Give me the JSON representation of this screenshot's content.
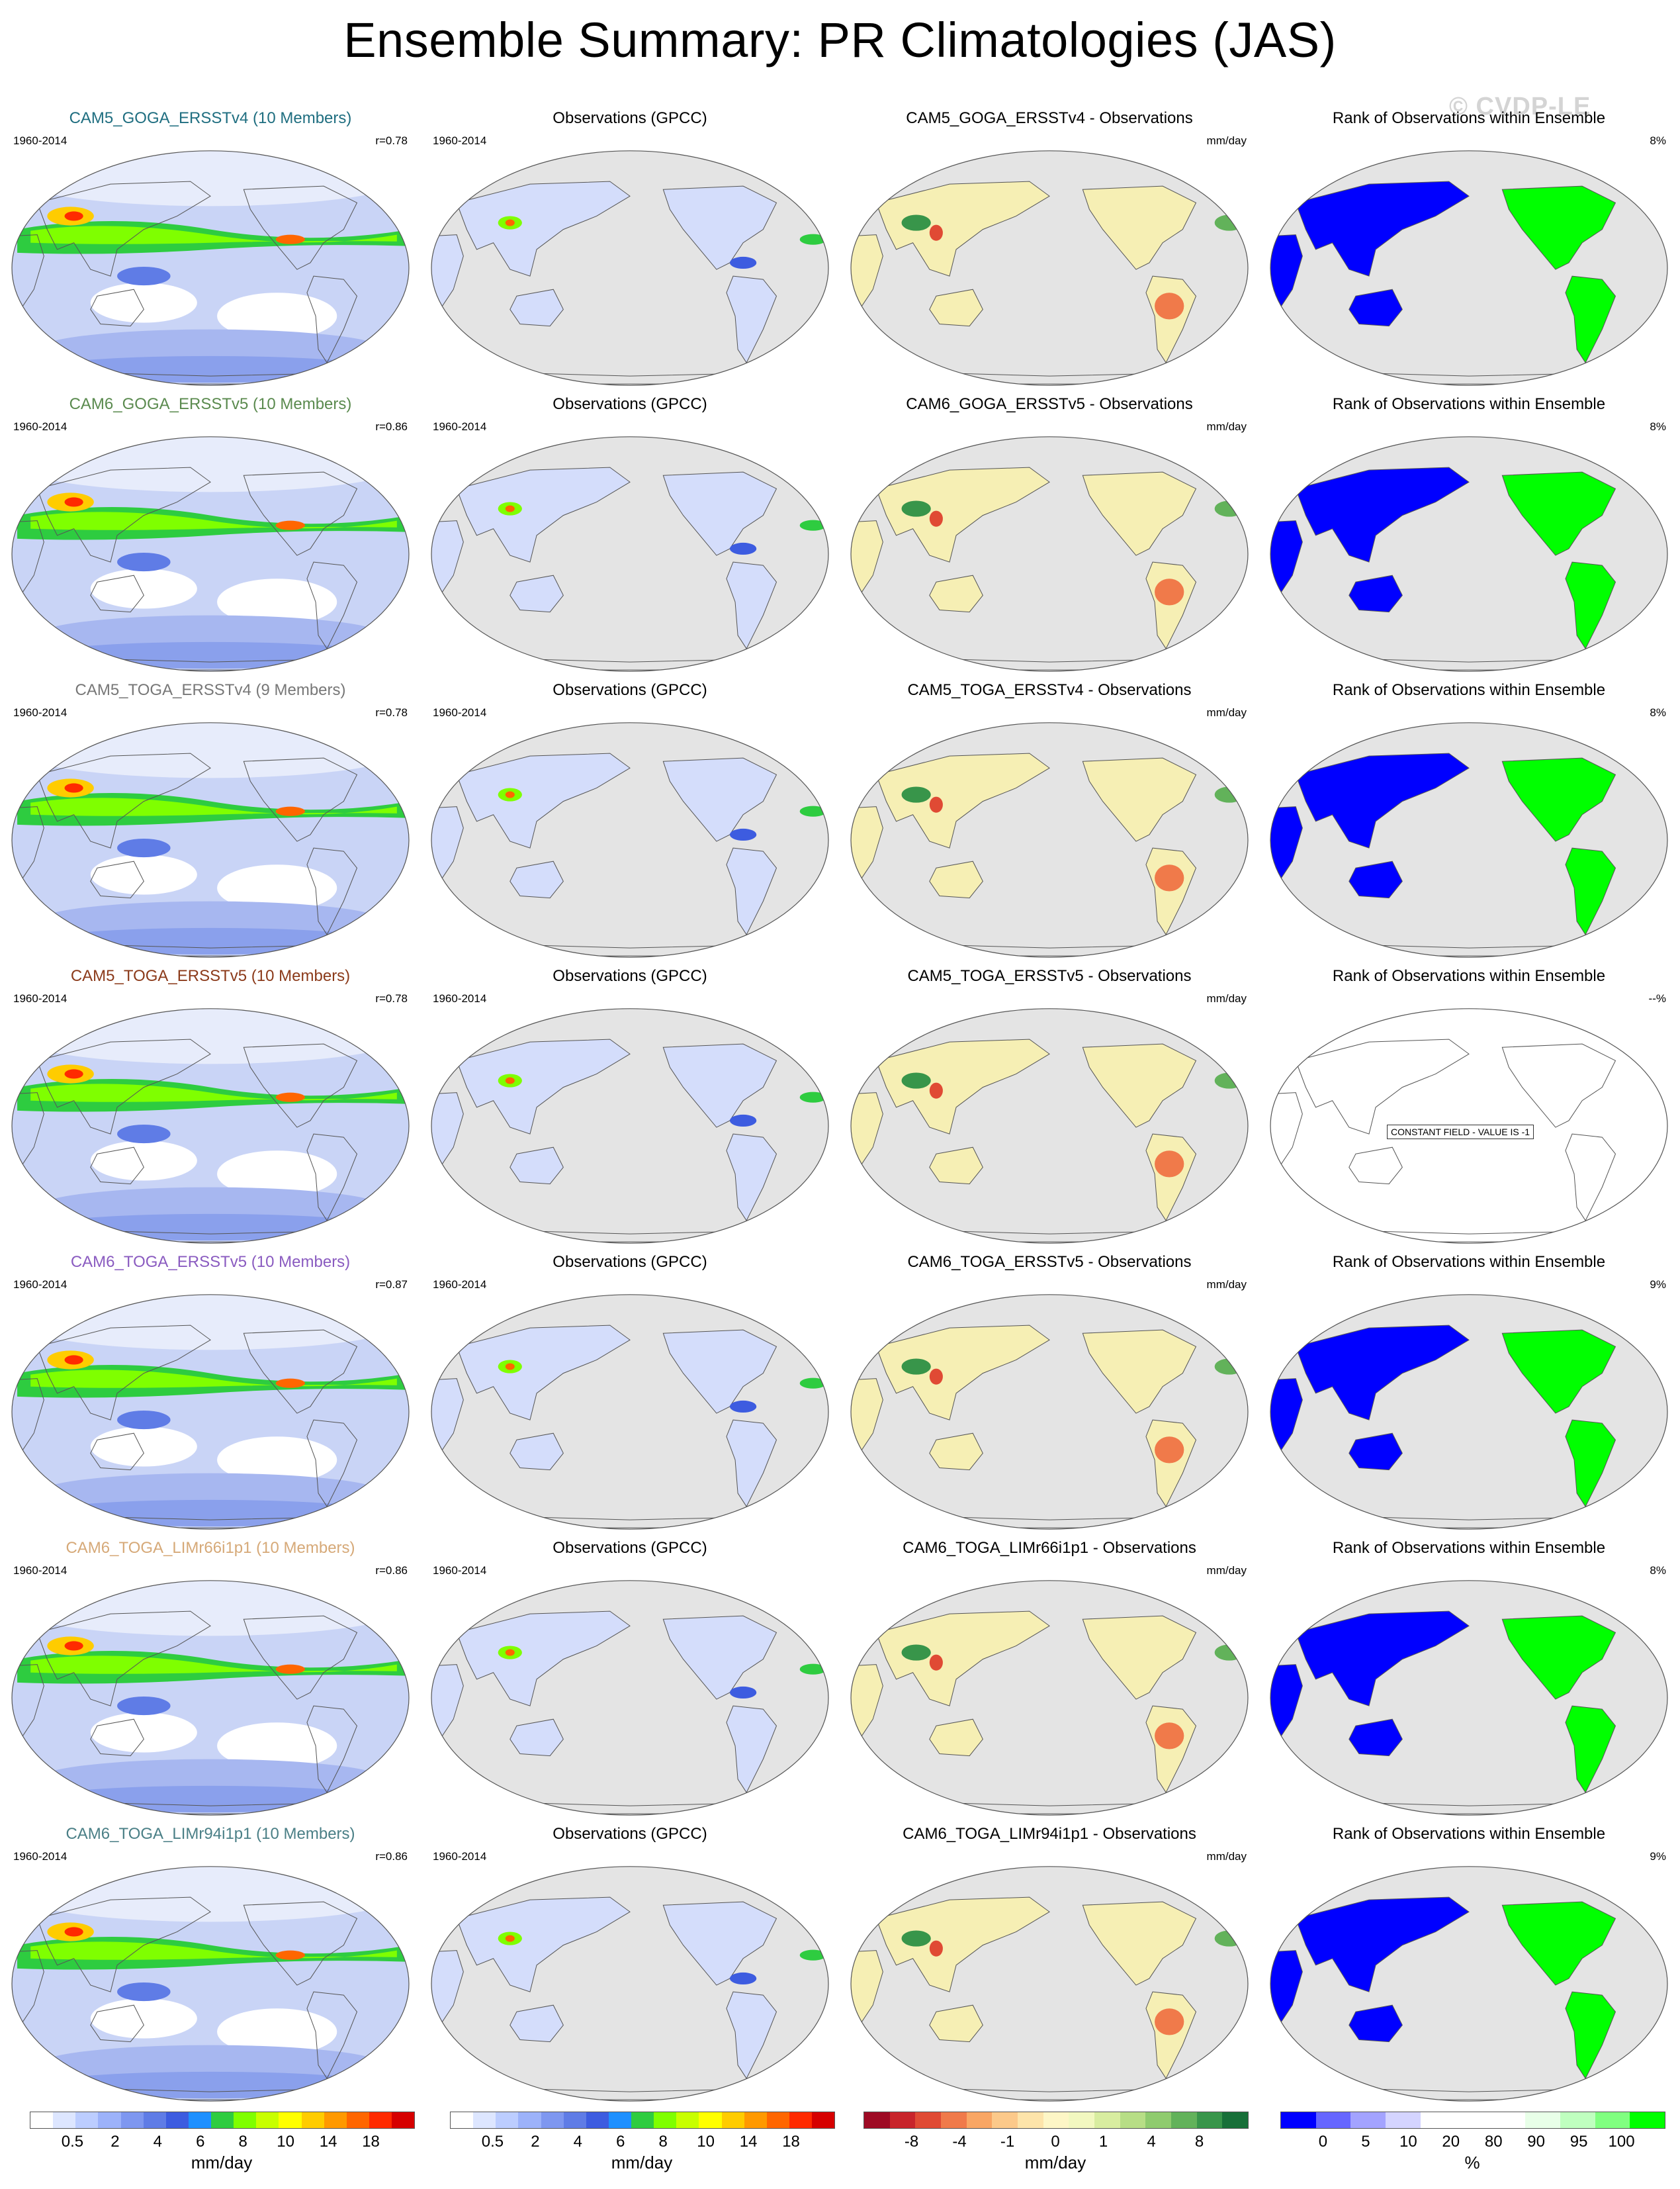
{
  "title": "Ensemble Summary: PR Climatologies (JAS)",
  "watermark": "© CVDP-LE",
  "rows": [
    {
      "model": {
        "title": "CAM5_GOGA_ERSSTv4 (10 Members)",
        "color": "#1f6e80",
        "period": "1960-2014",
        "r": "r=0.78"
      },
      "obs": {
        "title": "Observations (GPCC)",
        "period": "1960-2014"
      },
      "diff": {
        "title": "CAM5_GOGA_ERSSTv4 - Observations",
        "units": "mm/day"
      },
      "rank": {
        "title": "Rank of Observations within Ensemble",
        "pct": "8%",
        "constant": false
      }
    },
    {
      "model": {
        "title": "CAM6_GOGA_ERSSTv5 (10 Members)",
        "color": "#5a8a4e",
        "period": "1960-2014",
        "r": "r=0.86"
      },
      "obs": {
        "title": "Observations (GPCC)",
        "period": "1960-2014"
      },
      "diff": {
        "title": "CAM6_GOGA_ERSSTv5 - Observations",
        "units": "mm/day"
      },
      "rank": {
        "title": "Rank of Observations within Ensemble",
        "pct": "8%",
        "constant": false
      }
    },
    {
      "model": {
        "title": "CAM5_TOGA_ERSSTv4 (9 Members)",
        "color": "#777777",
        "period": "1960-2014",
        "r": "r=0.78"
      },
      "obs": {
        "title": "Observations (GPCC)",
        "period": "1960-2014"
      },
      "diff": {
        "title": "CAM5_TOGA_ERSSTv4 - Observations",
        "units": "mm/day"
      },
      "rank": {
        "title": "Rank of Observations within Ensemble",
        "pct": "8%",
        "constant": false
      }
    },
    {
      "model": {
        "title": "CAM5_TOGA_ERSSTv5 (10 Members)",
        "color": "#8b3a1a",
        "period": "1960-2014",
        "r": "r=0.78"
      },
      "obs": {
        "title": "Observations (GPCC)",
        "period": "1960-2014"
      },
      "diff": {
        "title": "CAM5_TOGA_ERSSTv5 - Observations",
        "units": "mm/day"
      },
      "rank": {
        "title": "Rank of Observations within Ensemble",
        "pct": "--%",
        "constant": true,
        "constant_label": "CONSTANT FIELD - VALUE IS -1"
      }
    },
    {
      "model": {
        "title": "CAM6_TOGA_ERSSTv5 (10 Members)",
        "color": "#8a5bc0",
        "period": "1960-2014",
        "r": "r=0.87"
      },
      "obs": {
        "title": "Observations (GPCC)",
        "period": "1960-2014"
      },
      "diff": {
        "title": "CAM6_TOGA_ERSSTv5 - Observations",
        "units": "mm/day"
      },
      "rank": {
        "title": "Rank of Observations within Ensemble",
        "pct": "9%",
        "constant": false
      }
    },
    {
      "model": {
        "title": "CAM6_TOGA_LIMr66i1p1 (10 Members)",
        "color": "#d6a978",
        "period": "1960-2014",
        "r": "r=0.86"
      },
      "obs": {
        "title": "Observations (GPCC)",
        "period": "1960-2014"
      },
      "diff": {
        "title": "CAM6_TOGA_LIMr66i1p1 - Observations",
        "units": "mm/day"
      },
      "rank": {
        "title": "Rank of Observations within Ensemble",
        "pct": "8%",
        "constant": false
      }
    },
    {
      "model": {
        "title": "CAM6_TOGA_LIMr94i1p1 (10 Members)",
        "color": "#4a7f86",
        "period": "1960-2014",
        "r": "r=0.86"
      },
      "obs": {
        "title": "Observations (GPCC)",
        "period": "1960-2014"
      },
      "diff": {
        "title": "CAM6_TOGA_LIMr94i1p1 - Observations",
        "units": "mm/day"
      },
      "rank": {
        "title": "Rank of Observations within Ensemble",
        "pct": "9%",
        "constant": false
      }
    }
  ],
  "legends": [
    {
      "units": "mm/day",
      "colors": [
        "#ffffff",
        "#dde6ff",
        "#bccdff",
        "#9cb2fa",
        "#7e97f0",
        "#5f7ce6",
        "#3d5ce0",
        "#1e90ff",
        "#2ecc40",
        "#7fff00",
        "#c8ff00",
        "#ffff00",
        "#ffcc00",
        "#ff9900",
        "#ff6600",
        "#ff2a00",
        "#d60000"
      ],
      "ticks": [
        "0.5",
        "2",
        "4",
        "6",
        "8",
        "10",
        "14",
        "18"
      ]
    },
    {
      "units": "mm/day",
      "colors": [
        "#ffffff",
        "#dde6ff",
        "#bccdff",
        "#9cb2fa",
        "#7e97f0",
        "#5f7ce6",
        "#3d5ce0",
        "#1e90ff",
        "#2ecc40",
        "#7fff00",
        "#c8ff00",
        "#ffff00",
        "#ffcc00",
        "#ff9900",
        "#ff6600",
        "#ff2a00",
        "#d60000"
      ],
      "ticks": [
        "0.5",
        "2",
        "4",
        "6",
        "8",
        "10",
        "14",
        "18"
      ]
    },
    {
      "units": "mm/day",
      "colors": [
        "#9e0a24",
        "#c8242b",
        "#e04a34",
        "#f07a4a",
        "#f9a664",
        "#fcc98a",
        "#fde4aa",
        "#fdf6c6",
        "#f2f8c0",
        "#d8eda0",
        "#b7de86",
        "#8fcb6e",
        "#62b25a",
        "#38954a",
        "#176f38"
      ],
      "ticks": [
        "-8",
        "-4",
        "-1",
        "0",
        "1",
        "4",
        "8"
      ]
    },
    {
      "units": "%",
      "colors": [
        "#0000ff",
        "#6666ff",
        "#a3a3ff",
        "#d4d4ff",
        "#ffffff",
        "#ffffff",
        "#ffffff",
        "#e8ffe8",
        "#bfffbf",
        "#80ff80",
        "#00ff00"
      ],
      "ticks": [
        "0",
        "5",
        "10",
        "20",
        "80",
        "90",
        "95",
        "100"
      ]
    }
  ]
}
